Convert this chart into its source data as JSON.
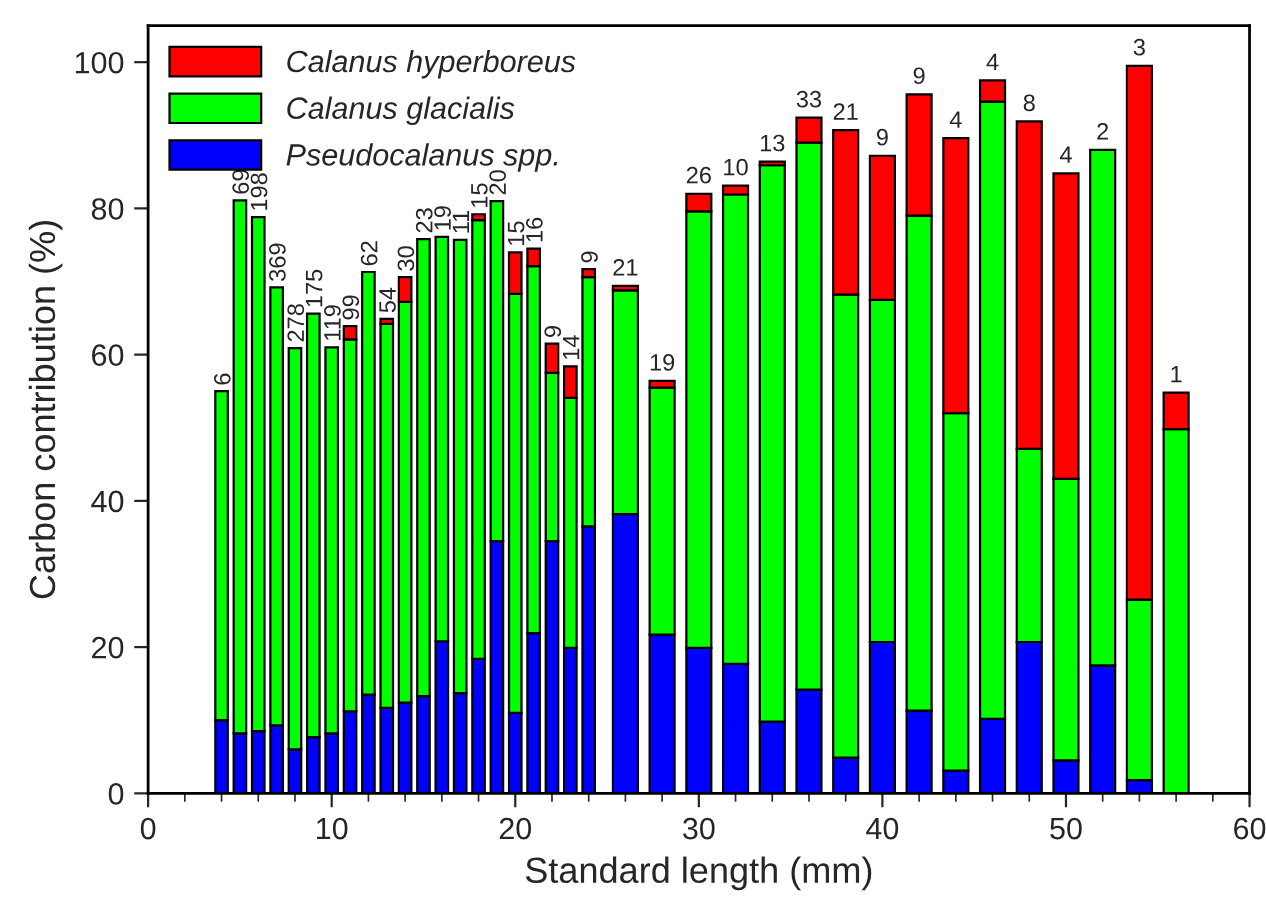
{
  "chart_data": {
    "type": "bar",
    "stacked": true,
    "xlabel": "Standard length (mm)",
    "ylabel": "Carbon contribution (%)",
    "x": [
      4,
      5,
      6,
      7,
      8,
      9,
      10,
      11,
      12,
      13,
      14,
      15,
      16,
      17,
      18,
      19,
      20,
      21,
      22,
      23,
      24,
      26,
      28,
      30,
      32,
      34,
      36,
      38,
      40,
      42,
      44,
      46,
      48,
      50,
      52,
      54,
      56
    ],
    "series": [
      {
        "name": "Pseudocalanus spp.",
        "color": "#0000ff",
        "values": [
          10.0,
          8.2,
          8.5,
          9.3,
          6.0,
          7.7,
          8.2,
          11.2,
          13.5,
          11.7,
          12.4,
          13.3,
          20.8,
          13.7,
          18.4,
          34.5,
          11.0,
          21.9,
          34.5,
          19.9,
          36.5,
          38.2,
          21.7,
          19.9,
          17.7,
          9.8,
          14.2,
          4.9,
          20.7,
          11.3,
          3.1,
          10.2,
          20.7,
          4.5,
          17.5,
          1.8,
          null
        ]
      },
      {
        "name": "Calanus glacialis",
        "color": "#00ff00",
        "values": [
          45.0,
          72.9,
          70.3,
          59.9,
          54.9,
          57.9,
          52.8,
          50.9,
          57.8,
          52.5,
          54.8,
          62.5,
          55.3,
          62.0,
          60.0,
          46.5,
          57.3,
          50.2,
          23.0,
          34.2,
          34.1,
          30.6,
          33.8,
          59.7,
          64.2,
          76.1,
          74.8,
          63.3,
          46.8,
          67.7,
          48.9,
          84.4,
          26.4,
          38.5,
          70.5,
          24.7,
          49.8
        ]
      },
      {
        "name": "Calanus hyperboreus",
        "color": "#ff0000",
        "values": [
          null,
          null,
          null,
          null,
          null,
          null,
          null,
          1.8,
          null,
          0.7,
          3.4,
          null,
          null,
          null,
          0.8,
          null,
          5.7,
          2.4,
          4.0,
          4.3,
          1.1,
          0.6,
          0.9,
          2.4,
          1.2,
          0.5,
          3.4,
          22.5,
          19.7,
          16.6,
          37.6,
          2.9,
          44.8,
          41.8,
          null,
          73.0,
          5.0
        ]
      }
    ],
    "annotations": [
      {
        "text": "6",
        "x": 4,
        "y": 55.0
      },
      {
        "text": "69",
        "x": 5,
        "y": 81.1
      },
      {
        "text": "198",
        "x": 6,
        "y": 78.8
      },
      {
        "text": "369",
        "x": 7,
        "y": 69.2
      },
      {
        "text": "278",
        "x": 8,
        "y": 60.9
      },
      {
        "text": "175",
        "x": 9,
        "y": 65.6
      },
      {
        "text": "119",
        "x": 10,
        "y": 61.0
      },
      {
        "text": "99",
        "x": 11,
        "y": 63.9
      },
      {
        "text": "62",
        "x": 12,
        "y": 71.3
      },
      {
        "text": "54",
        "x": 13,
        "y": 64.9
      },
      {
        "text": "30",
        "x": 14,
        "y": 70.6
      },
      {
        "text": "23",
        "x": 15,
        "y": 75.8
      },
      {
        "text": "19",
        "x": 16,
        "y": 76.1
      },
      {
        "text": "11",
        "x": 17,
        "y": 75.7
      },
      {
        "text": "15",
        "x": 18,
        "y": 79.2
      },
      {
        "text": "20",
        "x": 19,
        "y": 81.0
      },
      {
        "text": "15",
        "x": 20,
        "y": 74.0
      },
      {
        "text": "16",
        "x": 21,
        "y": 74.5
      },
      {
        "text": "9",
        "x": 22,
        "y": 61.5
      },
      {
        "text": "14",
        "x": 23,
        "y": 58.4
      },
      {
        "text": "9",
        "x": 24,
        "y": 71.7
      },
      {
        "text": "21",
        "x": 26,
        "y": 69.4
      },
      {
        "text": "19",
        "x": 28,
        "y": 56.4
      },
      {
        "text": "26",
        "x": 30,
        "y": 82.0
      },
      {
        "text": "10",
        "x": 32,
        "y": 83.1
      },
      {
        "text": "13",
        "x": 34,
        "y": 86.4
      },
      {
        "text": "33",
        "x": 36,
        "y": 92.4
      },
      {
        "text": "21",
        "x": 38,
        "y": 90.7
      },
      {
        "text": "9",
        "x": 40,
        "y": 87.2
      },
      {
        "text": "9",
        "x": 42,
        "y": 95.6
      },
      {
        "text": "4",
        "x": 44,
        "y": 89.6
      },
      {
        "text": "4",
        "x": 46,
        "y": 97.5
      },
      {
        "text": "8",
        "x": 48,
        "y": 91.9
      },
      {
        "text": "4",
        "x": 50,
        "y": 84.8
      },
      {
        "text": "2",
        "x": 52,
        "y": 88.0
      },
      {
        "text": "3",
        "x": 54,
        "y": 99.5
      },
      {
        "text": "1",
        "x": 56,
        "y": 54.8
      }
    ],
    "xlim": [
      0,
      60
    ],
    "xticks": [
      0,
      10,
      20,
      30,
      40,
      50,
      60
    ],
    "ylim": [
      0,
      105
    ],
    "yticks": [
      0,
      20,
      40,
      60,
      80,
      100
    ],
    "legend": "top left",
    "grid": false
  }
}
